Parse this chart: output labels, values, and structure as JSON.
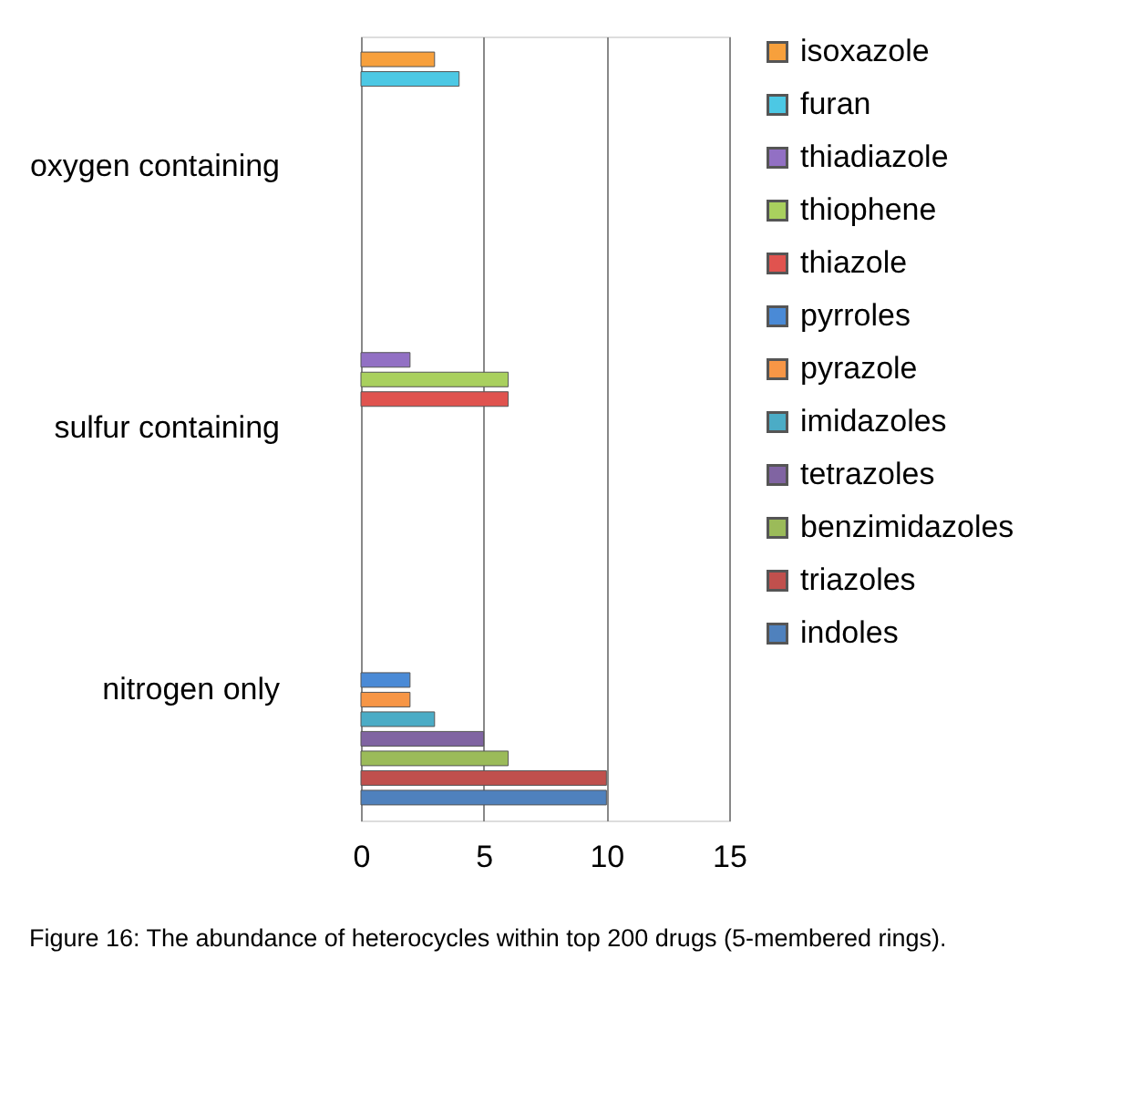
{
  "chart_data": {
    "type": "bar",
    "orientation": "horizontal",
    "categories": [
      "oxygen containing",
      "sulfur containing",
      "nitrogen only"
    ],
    "series": [
      {
        "name": "indoles",
        "color": "#4f81bd",
        "values": [
          null,
          null,
          10
        ]
      },
      {
        "name": "triazoles",
        "color": "#c0504d",
        "values": [
          null,
          null,
          10
        ]
      },
      {
        "name": "benzimidazoles",
        "color": "#9bbb59",
        "values": [
          null,
          null,
          6
        ]
      },
      {
        "name": "tetrazoles",
        "color": "#8064a2",
        "values": [
          null,
          null,
          5
        ]
      },
      {
        "name": "imidazoles",
        "color": "#4bacc6",
        "values": [
          null,
          null,
          3
        ]
      },
      {
        "name": "pyrazole",
        "color": "#f79646",
        "values": [
          null,
          null,
          2
        ]
      },
      {
        "name": "pyrroles",
        "color": "#4a8ad6",
        "values": [
          null,
          null,
          2
        ]
      },
      {
        "name": "thiazole",
        "color": "#e0534f",
        "values": [
          null,
          6,
          null
        ]
      },
      {
        "name": "thiophene",
        "color": "#a9d05e",
        "values": [
          null,
          6,
          null
        ]
      },
      {
        "name": "thiadiazole",
        "color": "#9270c4",
        "values": [
          null,
          2,
          null
        ]
      },
      {
        "name": "furan",
        "color": "#4cc8e4",
        "values": [
          4,
          null,
          null
        ]
      },
      {
        "name": "isoxazole",
        "color": "#f7a03c",
        "values": [
          3,
          null,
          null
        ]
      }
    ],
    "xlim": [
      0,
      15
    ],
    "xticks": [
      0,
      5,
      10,
      15
    ],
    "grid": "x",
    "legend": "right",
    "annotations": [
      "Figure 16: The abundance of heterocycles within top 200 drugs (5-membered rings)."
    ]
  }
}
